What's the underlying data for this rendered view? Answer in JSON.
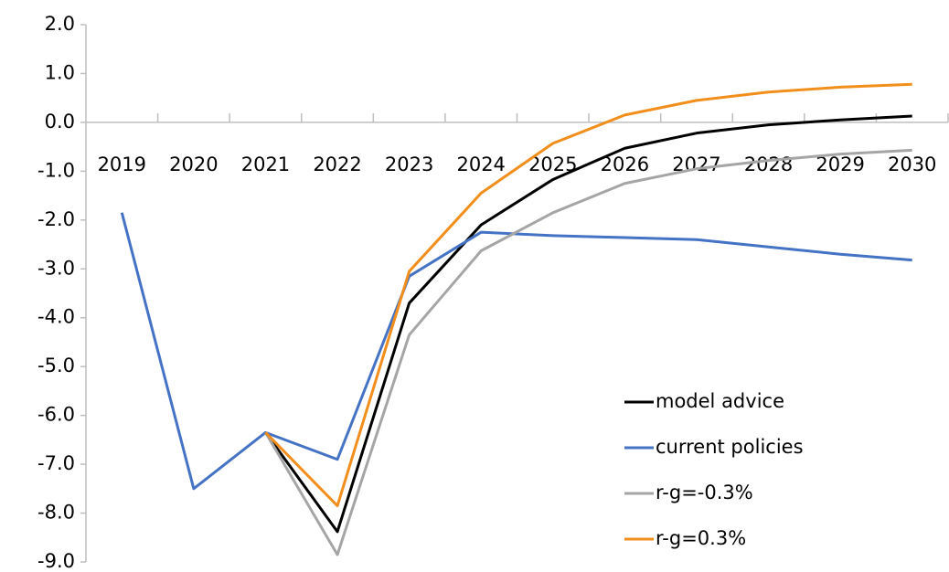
{
  "chart_data": {
    "type": "line",
    "categories": [
      "2019",
      "2020",
      "2021",
      "2022",
      "2023",
      "2024",
      "2025",
      "2026",
      "2027",
      "2028",
      "2029",
      "2030"
    ],
    "series": [
      {
        "name": "model advice",
        "color": "#000000",
        "values": [
          null,
          null,
          -6.35,
          -8.38,
          -3.7,
          -2.1,
          -1.17,
          -0.53,
          -0.22,
          -0.05,
          0.05,
          0.13
        ]
      },
      {
        "name": "current policies",
        "color": "#4472c4",
        "values": [
          -1.85,
          -7.5,
          -6.35,
          -6.9,
          -3.15,
          -2.25,
          -2.32,
          -2.36,
          -2.4,
          -2.55,
          -2.7,
          -2.82
        ]
      },
      {
        "name": "r-g=-0.3%",
        "color": "#a5a5a5",
        "values": [
          null,
          null,
          -6.35,
          -8.85,
          -4.35,
          -2.63,
          -1.85,
          -1.25,
          -0.95,
          -0.78,
          -0.65,
          -0.57
        ]
      },
      {
        "name": "r-g=0.3%",
        "color": "#f28e1c",
        "values": [
          null,
          null,
          -6.35,
          -7.85,
          -3.05,
          -1.45,
          -0.43,
          0.15,
          0.45,
          0.62,
          0.72,
          0.78
        ]
      }
    ],
    "ylim": [
      -9,
      2
    ],
    "yticks": [
      {
        "value": 2,
        "label": "2.0"
      },
      {
        "value": 1,
        "label": "1.0"
      },
      {
        "value": 0,
        "label": "0.0"
      },
      {
        "value": -1,
        "label": "-1.0"
      },
      {
        "value": -2,
        "label": "-2.0"
      },
      {
        "value": -3,
        "label": "-3.0"
      },
      {
        "value": -4,
        "label": "-4.0"
      },
      {
        "value": -5,
        "label": "-5.0"
      },
      {
        "value": -6,
        "label": "-6.0"
      },
      {
        "value": -7,
        "label": "-7.0"
      },
      {
        "value": -8,
        "label": "-8.0"
      },
      {
        "value": -9,
        "label": "-9.0"
      }
    ],
    "grid": false,
    "legend": "lower right"
  }
}
